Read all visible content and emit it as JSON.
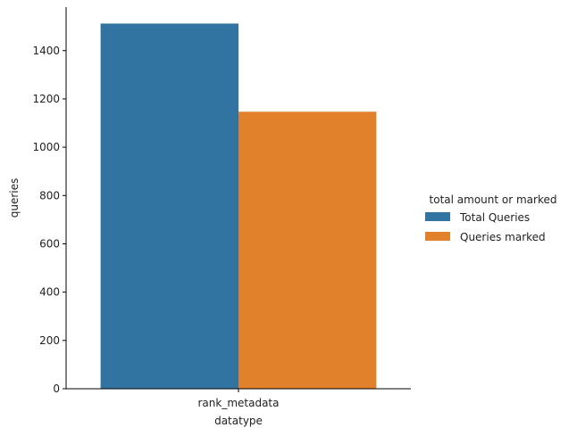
{
  "chart_data": {
    "type": "bar",
    "categories": [
      "rank_metadata"
    ],
    "series": [
      {
        "name": "Total Queries",
        "values": [
          1512
        ],
        "color": "#3274a1"
      },
      {
        "name": "Queries marked",
        "values": [
          1147
        ],
        "color": "#e1812c"
      }
    ],
    "xlabel": "datatype",
    "ylabel": "queries",
    "ylim": [
      0,
      1580
    ],
    "yticks": [
      0,
      200,
      400,
      600,
      800,
      1000,
      1200,
      1400
    ],
    "legend_title": "total amount or marked",
    "legend_position": "right",
    "grid": false
  }
}
